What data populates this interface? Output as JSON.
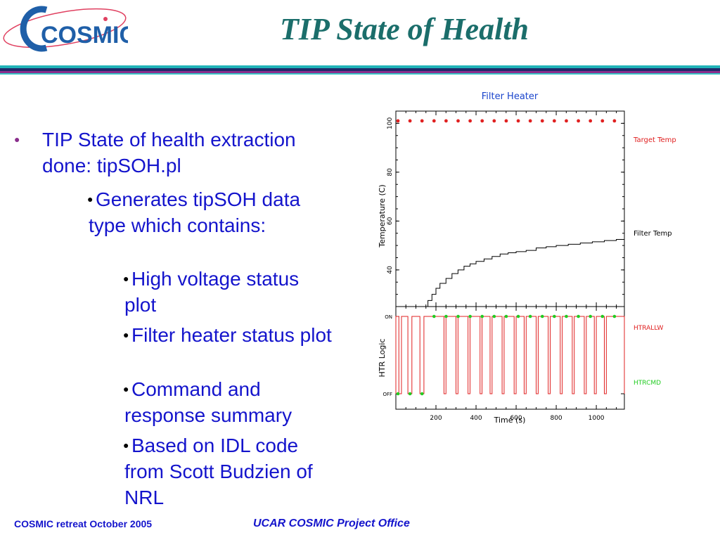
{
  "logo": {
    "text": "COSMIC"
  },
  "slide_title": "TIP State of Health",
  "bullets": [
    {
      "level": 0,
      "text": "TIP State of health extraction done: tipSOH.pl"
    },
    {
      "level": 1,
      "text": "Generates tipSOH data type which contains:"
    },
    {
      "level": 2,
      "text": "High voltage status plot"
    },
    {
      "level": 2,
      "text": "Filter heater status plot"
    },
    {
      "level": 2,
      "text": "Command and response summary"
    },
    {
      "level": 2,
      "text": "Based on IDL code from Scott Budzien of NRL"
    }
  ],
  "footer": {
    "left": "COSMIC retreat October 2005",
    "center": "UCAR COSMIC Project Office"
  },
  "colors": {
    "title": "#1b6e6b",
    "bullet_text": "#1414cc",
    "target_temp": "#e02020",
    "htrallw": "#e02020",
    "htrcmd": "#22cc22",
    "filter_temp": "#000000"
  },
  "chart_data": [
    {
      "type": "line",
      "title": "Filter Heater",
      "xlabel": "",
      "ylabel": "Temperature (C)",
      "xlim": [
        0,
        1140
      ],
      "ylim": [
        25,
        105
      ],
      "yticks": [
        40,
        60,
        80,
        100
      ],
      "series": [
        {
          "name": "Target Temp",
          "style": "dots",
          "x": [
            0,
            60,
            120,
            180,
            240,
            300,
            360,
            420,
            480,
            540,
            600,
            660,
            720,
            780,
            840,
            900,
            960,
            1020,
            1080
          ],
          "y": [
            101,
            101,
            101,
            101,
            101,
            101,
            101,
            101,
            101,
            101,
            101,
            101,
            101,
            101,
            101,
            101,
            101,
            101,
            101
          ]
        },
        {
          "name": "Filter Temp",
          "style": "step",
          "x": [
            140,
            160,
            180,
            200,
            220,
            250,
            280,
            310,
            340,
            370,
            400,
            440,
            480,
            520,
            560,
            600,
            650,
            700,
            750,
            800,
            860,
            920,
            980,
            1040,
            1100,
            1140
          ],
          "y": [
            25,
            27.5,
            30,
            32.5,
            34.5,
            36.5,
            38.5,
            40,
            41.5,
            42.5,
            43.5,
            44.5,
            45.5,
            46.5,
            47,
            47.5,
            48,
            49,
            49.5,
            50,
            50.5,
            51,
            51.5,
            52,
            52.5,
            52.5
          ]
        }
      ]
    },
    {
      "type": "line",
      "title": "",
      "xlabel": "Time (s)",
      "ylabel": "HTR Logic",
      "xlim": [
        0,
        1140
      ],
      "xticks": [
        200,
        400,
        600,
        800,
        1000
      ],
      "yticks": [
        "ON",
        "OFF"
      ],
      "series": [
        {
          "name": "HTRALLW",
          "style": "pulse",
          "on_intervals": [
            [
              0,
              15
            ],
            [
              28,
              60
            ],
            [
              80,
              120
            ],
            [
              140,
              240
            ],
            [
              250,
              300
            ],
            [
              310,
              360
            ],
            [
              370,
              420
            ],
            [
              430,
              470
            ],
            [
              480,
              530
            ],
            [
              540,
              590
            ],
            [
              600,
              640
            ],
            [
              650,
              700
            ],
            [
              710,
              760
            ],
            [
              770,
              820
            ],
            [
              830,
              880
            ],
            [
              890,
              940
            ],
            [
              950,
              990
            ],
            [
              1000,
              1040
            ],
            [
              1050,
              1140
            ]
          ]
        },
        {
          "name": "HTRCMD",
          "style": "dots",
          "off_x": [
            0,
            60,
            120
          ],
          "on_x": [
            180,
            240,
            300,
            360,
            420,
            480,
            540,
            600,
            660,
            720,
            780,
            840,
            900,
            960,
            1020,
            1080
          ]
        }
      ]
    }
  ]
}
